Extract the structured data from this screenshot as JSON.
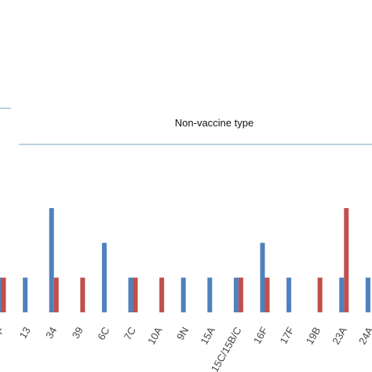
{
  "chart_data": {
    "type": "bar",
    "annotation": "Non-vaccine type",
    "categories": [
      "F",
      "13",
      "34",
      "39",
      "6C",
      "7C",
      "10A",
      "9N",
      "15A",
      "15C/15B/C",
      "16F",
      "17F",
      "19B",
      "23A",
      "24A"
    ],
    "series": [
      {
        "color": "#4F81BD",
        "values": [
          1,
          1,
          3,
          0,
          2,
          1,
          0,
          1,
          1,
          1,
          2,
          1,
          0,
          1,
          1
        ]
      },
      {
        "color": "#C0504D",
        "values": [
          1,
          0,
          1,
          1,
          0,
          1,
          1,
          0,
          0,
          1,
          1,
          0,
          1,
          3,
          0
        ]
      }
    ],
    "ylim": [
      0,
      4
    ],
    "grid": false,
    "colors": {
      "separator_line": "#6FA9C9",
      "text": "#444444"
    }
  }
}
